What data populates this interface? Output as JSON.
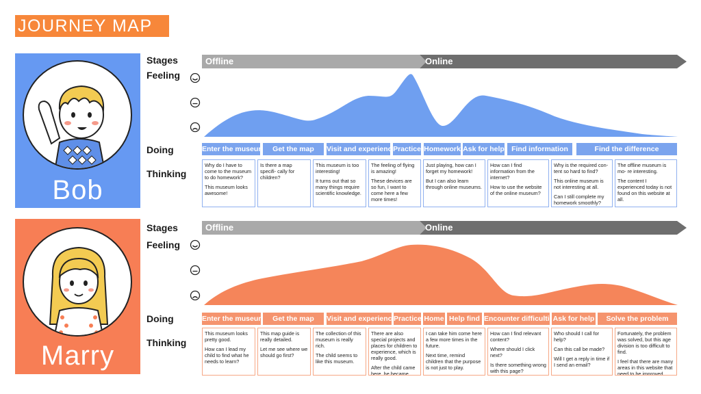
{
  "title": "JOURNEY MAP",
  "labels": {
    "stages": "Stages",
    "feeling": "Feeling",
    "doing": "Doing",
    "thinking": "Thinking"
  },
  "colors": {
    "title_bg": "#f7873a",
    "bob_primary": "#6699f2",
    "bob_chip": "#7ba4ee",
    "marry_primary": "#f77e55",
    "marry_chip": "#f5946e",
    "stage_offline": "#a9a9a9",
    "stage_online": "#6e6e6e"
  },
  "personas": [
    {
      "name": "Bob",
      "stages": {
        "offline": "Offline",
        "online": "Online"
      },
      "doing": [
        "Enter the museum",
        "Get the map",
        "Visit and experience",
        "Practice",
        "Homework",
        "Ask for help",
        "Find information",
        "Find the difference"
      ],
      "thinking": [
        [
          "Why do I have to come to the museum to do homework?",
          "This museum looks awesome!"
        ],
        [
          "Is there a map specifi- cally for children?"
        ],
        [
          "This museum is too interesting!",
          "It turns out that so many things require scientific knowledge."
        ],
        [
          "The feeling of flying is amazing!",
          "These devices are so fun, I want to come here a few more times!"
        ],
        [
          "Just playing, how can I forget my homework!",
          "But I can also learn through online museums."
        ],
        [
          "How can I find information from the internet?",
          "How to use the website of the online museum?"
        ],
        [
          "Why is the required con- tent so hard to find?",
          "This online museum is not interesting at all.",
          "Can I still complete my homework smoothly?"
        ],
        [
          "The offline museum is mo- re interesting.",
          "The content I experienced today is not found on this website at all."
        ]
      ]
    },
    {
      "name": "Marry",
      "stages": {
        "offline": "Offline",
        "online": "Online"
      },
      "doing": [
        "Enter the museum",
        "Get the map",
        "Visit and experience",
        "Practice",
        "Home",
        "Help find",
        "Encounter difficulties",
        "Ask for help",
        "Solve the problem"
      ],
      "thinking": [
        [
          "This museum looks pretty good.",
          "How can I lead my child to find what he needs to learn?"
        ],
        [
          "This map guide is really detailed.",
          "Let me see where we should go first?"
        ],
        [
          "The collection of this museum is really rich.",
          "The child seems to like this museum."
        ],
        [
          "There are also special projects and places for children to experience, which is really good.",
          "After the child came here, he became mor interested in learning."
        ],
        [
          "I can take him come here a few more times in the future.",
          "Next time, remind children that the purpose is not just to play."
        ],
        [
          "How can I find relevant content?",
          "Where should I click next?",
          "Is there something wrong with this page?"
        ],
        [
          "Who should I call for help?",
          "Can this call be made?",
          "Will I get a reply in time if I send an email?"
        ],
        [
          "Fortunately, the problem was solved, but this age division is too difficult to find.",
          "I feel that there are many areas in this website that need to be improved."
        ]
      ]
    }
  ]
}
